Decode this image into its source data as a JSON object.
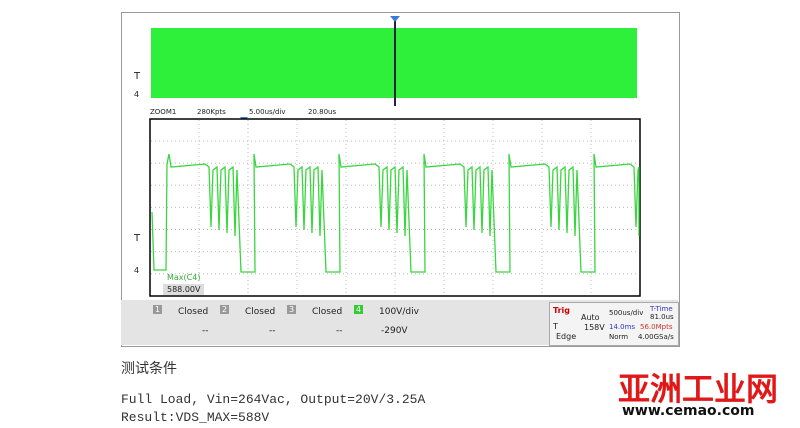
{
  "scope": {
    "overview": {
      "trigger_label": "T",
      "channel_label": "4"
    },
    "zoom": {
      "name": "ZOOM1",
      "points": "280Kpts",
      "timebase": "5.00us/div",
      "offset": "20.80us"
    },
    "main": {
      "trigger_label": "T",
      "channel_label": "4",
      "measure_name": "Max(C4)",
      "measure_value": "588.00V"
    },
    "channels": [
      {
        "number": "1",
        "scale": "Closed",
        "offset": "--"
      },
      {
        "number": "2",
        "scale": "Closed",
        "offset": "--"
      },
      {
        "number": "3",
        "scale": "Closed",
        "offset": "--"
      },
      {
        "number": "4",
        "scale": "100V/div",
        "offset": "-290V"
      }
    ],
    "trigger": {
      "title": "Trig",
      "mode": "Auto",
      "source": "T",
      "level": "158V",
      "type": "Edge"
    },
    "timebase": {
      "scale": "500us/div",
      "delay": "14.0ms",
      "acq": "Norm",
      "ttime_label": "T-Time",
      "ttime": "81.0us",
      "points": "56.0Mpts",
      "rate": "4.00GSa/s"
    }
  },
  "caption": {
    "heading": "测试条件",
    "line1": "Full Load, Vin=264Vac, Output=20V/3.25A",
    "line2": "Result:VDS_MAX=588V"
  },
  "watermark": {
    "title": "亚洲工业网",
    "url": "www.cemao.com"
  }
}
